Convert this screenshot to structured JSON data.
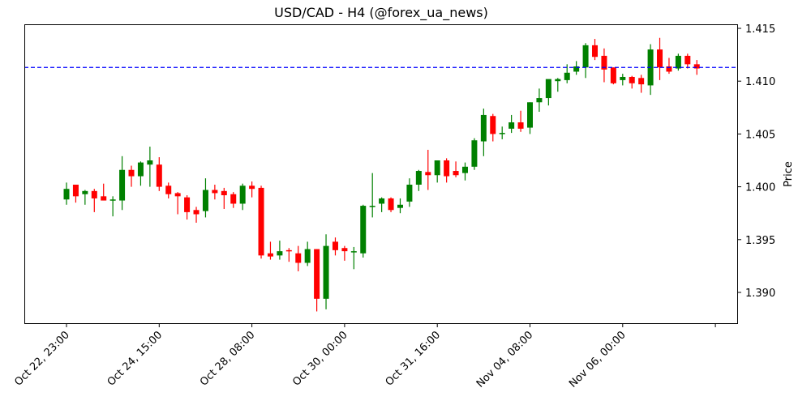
{
  "chart_data": {
    "type": "candlestick",
    "title": "USD/CAD - H4 (@forex_ua_news)",
    "xlabel": "",
    "ylabel": "Price",
    "ylim": [
      1.3871,
      1.4155
    ],
    "y_ticks": [
      "1.390",
      "1.395",
      "1.400",
      "1.405",
      "1.410",
      "1.415"
    ],
    "x_ticks": [
      "Oct 22, 23:00",
      "Oct 24, 15:00",
      "Oct 28, 08:00",
      "Oct 30, 00:00",
      "Oct 31, 16:00",
      "Nov 04, 08:00",
      "Nov 06, 00:00",
      ""
    ],
    "reference_line": {
      "value": 1.4113,
      "style": "dashed",
      "color": "#0000ff"
    },
    "up_color": "#008000",
    "down_color": "#ff0000",
    "grid": false,
    "candles": [
      {
        "o": 1.3988,
        "h": 1.4004,
        "l": 1.3983,
        "c": 1.3998
      },
      {
        "o": 1.4002,
        "h": 1.4002,
        "l": 1.3985,
        "c": 1.3991
      },
      {
        "o": 1.3993,
        "h": 1.3997,
        "l": 1.3983,
        "c": 1.3996
      },
      {
        "o": 1.3996,
        "h": 1.3998,
        "l": 1.3976,
        "c": 1.3989
      },
      {
        "o": 1.3991,
        "h": 1.4003,
        "l": 1.3987,
        "c": 1.3987
      },
      {
        "o": 1.3988,
        "h": 1.3991,
        "l": 1.3972,
        "c": 1.3988
      },
      {
        "o": 1.3987,
        "h": 1.4029,
        "l": 1.3978,
        "c": 1.4016
      },
      {
        "o": 1.4016,
        "h": 1.402,
        "l": 1.4,
        "c": 1.401
      },
      {
        "o": 1.401,
        "h": 1.4024,
        "l": 1.4001,
        "c": 1.4023
      },
      {
        "o": 1.4021,
        "h": 1.4038,
        "l": 1.4,
        "c": 1.4025
      },
      {
        "o": 1.4021,
        "h": 1.4028,
        "l": 1.3996,
        "c": 1.4
      },
      {
        "o": 1.4001,
        "h": 1.4004,
        "l": 1.3989,
        "c": 1.3993
      },
      {
        "o": 1.3994,
        "h": 1.3995,
        "l": 1.3974,
        "c": 1.3991
      },
      {
        "o": 1.399,
        "h": 1.3992,
        "l": 1.3969,
        "c": 1.3976
      },
      {
        "o": 1.3978,
        "h": 1.3981,
        "l": 1.3966,
        "c": 1.3974
      },
      {
        "o": 1.3977,
        "h": 1.4008,
        "l": 1.3971,
        "c": 1.3997
      },
      {
        "o": 1.3997,
        "h": 1.4002,
        "l": 1.3988,
        "c": 1.3994
      },
      {
        "o": 1.3996,
        "h": 1.3999,
        "l": 1.3979,
        "c": 1.3992
      },
      {
        "o": 1.3993,
        "h": 1.3995,
        "l": 1.398,
        "c": 1.3984
      },
      {
        "o": 1.3984,
        "h": 1.4003,
        "l": 1.3978,
        "c": 1.4001
      },
      {
        "o": 1.4001,
        "h": 1.4005,
        "l": 1.399,
        "c": 1.3998
      },
      {
        "o": 1.3999,
        "h": 1.4001,
        "l": 1.3932,
        "c": 1.3935
      },
      {
        "o": 1.3937,
        "h": 1.3948,
        "l": 1.3931,
        "c": 1.3934
      },
      {
        "o": 1.3935,
        "h": 1.3949,
        "l": 1.3931,
        "c": 1.3939
      },
      {
        "o": 1.394,
        "h": 1.3942,
        "l": 1.3929,
        "c": 1.3939
      },
      {
        "o": 1.3937,
        "h": 1.3944,
        "l": 1.392,
        "c": 1.3928
      },
      {
        "o": 1.3928,
        "h": 1.3948,
        "l": 1.3925,
        "c": 1.3941
      },
      {
        "o": 1.3941,
        "h": 1.3941,
        "l": 1.3882,
        "c": 1.3894
      },
      {
        "o": 1.3894,
        "h": 1.3955,
        "l": 1.3884,
        "c": 1.3944
      },
      {
        "o": 1.3948,
        "h": 1.3952,
        "l": 1.3935,
        "c": 1.394
      },
      {
        "o": 1.3942,
        "h": 1.3944,
        "l": 1.393,
        "c": 1.3939
      },
      {
        "o": 1.3939,
        "h": 1.3943,
        "l": 1.3922,
        "c": 1.3939
      },
      {
        "o": 1.3937,
        "h": 1.3983,
        "l": 1.3933,
        "c": 1.3982
      },
      {
        "o": 1.3981,
        "h": 1.4013,
        "l": 1.3971,
        "c": 1.3982
      },
      {
        "o": 1.3984,
        "h": 1.399,
        "l": 1.3976,
        "c": 1.3989
      },
      {
        "o": 1.3989,
        "h": 1.399,
        "l": 1.3976,
        "c": 1.3978
      },
      {
        "o": 1.398,
        "h": 1.3989,
        "l": 1.3975,
        "c": 1.3983
      },
      {
        "o": 1.3986,
        "h": 1.4008,
        "l": 1.3981,
        "c": 1.4002
      },
      {
        "o": 1.4002,
        "h": 1.4016,
        "l": 1.3996,
        "c": 1.4015
      },
      {
        "o": 1.4014,
        "h": 1.4035,
        "l": 1.3997,
        "c": 1.4011
      },
      {
        "o": 1.4011,
        "h": 1.4025,
        "l": 1.4004,
        "c": 1.4025
      },
      {
        "o": 1.4025,
        "h": 1.4027,
        "l": 1.4004,
        "c": 1.401
      },
      {
        "o": 1.4015,
        "h": 1.4024,
        "l": 1.4009,
        "c": 1.4011
      },
      {
        "o": 1.4013,
        "h": 1.4023,
        "l": 1.4006,
        "c": 1.4019
      },
      {
        "o": 1.4019,
        "h": 1.4046,
        "l": 1.4016,
        "c": 1.4044
      },
      {
        "o": 1.4043,
        "h": 1.4074,
        "l": 1.4029,
        "c": 1.4068
      },
      {
        "o": 1.4067,
        "h": 1.4069,
        "l": 1.4043,
        "c": 1.405
      },
      {
        "o": 1.405,
        "h": 1.4057,
        "l": 1.4045,
        "c": 1.4051
      },
      {
        "o": 1.4055,
        "h": 1.4068,
        "l": 1.4051,
        "c": 1.4061
      },
      {
        "o": 1.4061,
        "h": 1.4072,
        "l": 1.4052,
        "c": 1.4055
      },
      {
        "o": 1.4056,
        "h": 1.408,
        "l": 1.405,
        "c": 1.408
      },
      {
        "o": 1.408,
        "h": 1.4093,
        "l": 1.4071,
        "c": 1.4084
      },
      {
        "o": 1.4084,
        "h": 1.4101,
        "l": 1.4077,
        "c": 1.4102
      },
      {
        "o": 1.41,
        "h": 1.4103,
        "l": 1.409,
        "c": 1.4102
      },
      {
        "o": 1.4101,
        "h": 1.4116,
        "l": 1.4098,
        "c": 1.4108
      },
      {
        "o": 1.4109,
        "h": 1.4119,
        "l": 1.4106,
        "c": 1.4114
      },
      {
        "o": 1.4113,
        "h": 1.4136,
        "l": 1.4103,
        "c": 1.4134
      },
      {
        "o": 1.4134,
        "h": 1.414,
        "l": 1.412,
        "c": 1.4123
      },
      {
        "o": 1.4124,
        "h": 1.4131,
        "l": 1.4099,
        "c": 1.4111
      },
      {
        "o": 1.4113,
        "h": 1.4113,
        "l": 1.4097,
        "c": 1.4098
      },
      {
        "o": 1.4101,
        "h": 1.4107,
        "l": 1.4096,
        "c": 1.4104
      },
      {
        "o": 1.4104,
        "h": 1.4105,
        "l": 1.4093,
        "c": 1.4098
      },
      {
        "o": 1.4103,
        "h": 1.4106,
        "l": 1.4089,
        "c": 1.4097
      },
      {
        "o": 1.4096,
        "h": 1.4135,
        "l": 1.4087,
        "c": 1.413
      },
      {
        "o": 1.413,
        "h": 1.4141,
        "l": 1.4101,
        "c": 1.4113
      },
      {
        "o": 1.4114,
        "h": 1.4122,
        "l": 1.4107,
        "c": 1.4109
      },
      {
        "o": 1.4112,
        "h": 1.4126,
        "l": 1.411,
        "c": 1.4124
      },
      {
        "o": 1.4124,
        "h": 1.4126,
        "l": 1.4112,
        "c": 1.4116
      },
      {
        "o": 1.4116,
        "h": 1.412,
        "l": 1.4106,
        "c": 1.4112
      }
    ]
  }
}
